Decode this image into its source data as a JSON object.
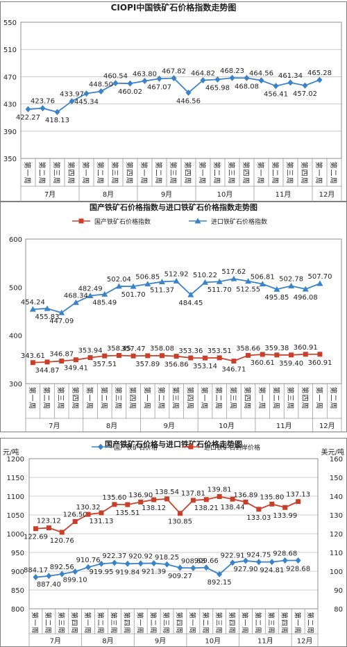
{
  "colors": {
    "blue": "#3b83c8",
    "red": "#c8402a",
    "grid": "#bfbfbf",
    "text": "#222222"
  },
  "chart_data": [
    {
      "type": "line",
      "title": "CIOPI中国铁矿石价格指数走势图",
      "ylim": [
        350,
        550
      ],
      "yticks": [
        350,
        390,
        430,
        470,
        510,
        550
      ],
      "week_labels": [
        "第一周",
        "第二周",
        "第三周",
        "第四周",
        "第一周",
        "第二周",
        "第三周",
        "第四周",
        "第一周",
        "第二周",
        "第三周",
        "第四周",
        "第一周",
        "第二周",
        "第三周",
        "第四周",
        "第一周",
        "第二周",
        "第三周",
        "第四周",
        "第一周",
        "第二周"
      ],
      "months": [
        {
          "label": "7月",
          "start": 0,
          "count": 4
        },
        {
          "label": "8月",
          "start": 4,
          "count": 4
        },
        {
          "label": "9月",
          "start": 8,
          "count": 4
        },
        {
          "label": "10月",
          "start": 12,
          "count": 4
        },
        {
          "label": "11月",
          "start": 16,
          "count": 4
        },
        {
          "label": "12月",
          "start": 20,
          "count": 2
        }
      ],
      "grid": true,
      "series": [
        {
          "values": [
            422.27,
            423.76,
            418.13,
            433.97,
            445.34,
            448.5,
            460.54,
            460.02,
            463.8,
            467.07,
            467.82,
            446.56,
            464.82,
            465.98,
            468.23,
            468.08,
            464.56,
            456.41,
            461.34,
            457.02,
            465.28
          ],
          "labels": [
            "422.27",
            "423.76",
            "418.13",
            "433.97",
            "445.34",
            "448.50",
            "460.54",
            "460.02",
            "463.80",
            "467.07",
            "467.82",
            "446.56",
            "464.82",
            "465.98",
            "468.23",
            "468.08",
            "464.56",
            "456.41",
            "461.34",
            "457.02",
            "465.28"
          ],
          "label_pos": [
            "below",
            "above",
            "below",
            "above",
            "below",
            "above",
            "above",
            "below",
            "above",
            "below",
            "above",
            "below",
            "above",
            "below",
            "above",
            "below",
            "above",
            "below",
            "above",
            "below",
            "above"
          ]
        }
      ]
    },
    {
      "type": "line",
      "title": "国产铁矿石价格指数与进口铁矿石价格指数走势图",
      "ylim": [
        300,
        600
      ],
      "yticks": [
        300,
        400,
        500,
        600
      ],
      "legend": "top",
      "week_labels": [
        "第一周",
        "第二周",
        "第三周",
        "第四周",
        "第一周",
        "第二周",
        "第三周",
        "第四周",
        "第一周",
        "第二周",
        "第三周",
        "第四周",
        "第一周",
        "第二周",
        "第三周",
        "第四周",
        "第一周",
        "第二周",
        "第三周",
        "第四周",
        "第一周",
        "第二周"
      ],
      "months": [
        {
          "label": "7月",
          "start": 0,
          "count": 4
        },
        {
          "label": "8月",
          "start": 4,
          "count": 4
        },
        {
          "label": "9月",
          "start": 8,
          "count": 4
        },
        {
          "label": "10月",
          "start": 12,
          "count": 4
        },
        {
          "label": "11月",
          "start": 16,
          "count": 4
        },
        {
          "label": "12月",
          "start": 20,
          "count": 2
        }
      ],
      "grid": false,
      "series": [
        {
          "name": "国产铁矿石价格指数",
          "color": "#c8402a",
          "marker": "square",
          "values": [
            343.61,
            344.87,
            346.87,
            349.41,
            353.94,
            357.51,
            358.45,
            357.47,
            357.89,
            358.08,
            356.86,
            353.36,
            353.14,
            353.51,
            346.71,
            358.66,
            360.61,
            359.38,
            359.4,
            360.91,
            360.91
          ],
          "labels": [
            "343.61",
            "344.87",
            "346.87",
            "349.41",
            "353.94",
            "357.51",
            "358.45",
            "357.47",
            "357.89",
            "358.08",
            "356.86",
            "353.36",
            "353.14",
            "353.51",
            "346.71",
            "358.66",
            "360.61",
            "359.38",
            "359.40",
            "360.91",
            "360.91"
          ],
          "label_pos": [
            "above",
            "below",
            "above",
            "below",
            "above",
            "below",
            "above",
            "above",
            "below",
            "above",
            "below",
            "above",
            "below",
            "above",
            "below",
            "above",
            "below",
            "above",
            "below",
            "above",
            "below"
          ]
        },
        {
          "name": "进口铁矿石价格指数",
          "color": "#3b83c8",
          "marker": "triangle",
          "values": [
            454.24,
            455.83,
            447.09,
            468.34,
            482.49,
            485.49,
            502.04,
            501.7,
            506.85,
            511.37,
            512.92,
            484.45,
            510.22,
            511.7,
            517.62,
            512.55,
            506.81,
            495.85,
            502.78,
            496.08,
            507.7
          ],
          "labels": [
            "454.24",
            "455.83",
            "447.09",
            "468.34",
            "482.49",
            "485.49",
            "502.04",
            "501.70",
            "506.85",
            "511.37",
            "512.92",
            "484.45",
            "510.22",
            "511.70",
            "517.62",
            "512.55",
            "506.81",
            "495.85",
            "502.78",
            "496.08",
            "507.70"
          ],
          "label_pos": [
            "above",
            "below",
            "below",
            "above",
            "above",
            "below",
            "above",
            "below",
            "above",
            "below",
            "above",
            "below",
            "above",
            "below",
            "above",
            "below",
            "above",
            "below",
            "above",
            "below",
            "above"
          ]
        }
      ]
    },
    {
      "type": "line",
      "title": "国产铁矿石价格与进口铁矿石价格走势图",
      "ylabel": "元/吨",
      "y2label": "美元/吨",
      "ylim": [
        800,
        1200
      ],
      "yticks": [
        800,
        850,
        900,
        950,
        1000,
        1050,
        1100,
        1150,
        1200
      ],
      "y2lim": [
        80,
        160
      ],
      "y2ticks": [
        80,
        90,
        100,
        110,
        120,
        130,
        140,
        150,
        160
      ],
      "legend": "top",
      "week_labels": [
        "第一周",
        "第二周",
        "第三周",
        "第四周",
        "第一周",
        "第二周",
        "第三周",
        "第四周",
        "第一周",
        "第二周",
        "第三周",
        "第四周",
        "第一周",
        "第二周",
        "第三周",
        "第四周",
        "第一周",
        "第二周",
        "第三周",
        "第四周",
        "第一周",
        "第二周"
      ],
      "months": [
        {
          "label": "7月",
          "start": 0,
          "count": 4
        },
        {
          "label": "8月",
          "start": 4,
          "count": 4
        },
        {
          "label": "9月",
          "start": 8,
          "count": 4
        },
        {
          "label": "10月",
          "start": 12,
          "count": 4
        },
        {
          "label": "11月",
          "start": 16,
          "count": 4
        },
        {
          "label": "12月",
          "start": 20,
          "count": 2
        }
      ],
      "grid": true,
      "series": [
        {
          "name": "国产铁矿石价格",
          "color": "#3b83c8",
          "marker": "diamond",
          "axis": "left",
          "values": [
            884.17,
            887.4,
            892.56,
            899.1,
            910.76,
            919.95,
            922.37,
            919.84,
            920.92,
            921.39,
            918.25,
            909.27,
            908.68,
            909.66,
            892.15,
            922.91,
            927.9,
            924.75,
            924.81,
            928.68,
            928.68
          ],
          "labels": [
            "884.17",
            "887.40",
            "892.56",
            "899.10",
            "910.76",
            "919.95",
            "922.37",
            "919.84",
            "920.92",
            "921.39",
            "918.25",
            "909.27",
            "908.68",
            "909.66",
            "892.15",
            "922.91",
            "927.90",
            "924.75",
            "924.81",
            "928.68",
            "928.68"
          ],
          "label_pos": [
            "above",
            "below",
            "above",
            "below",
            "above",
            "below",
            "above",
            "below",
            "above",
            "below",
            "above",
            "below",
            "above",
            "above",
            "below",
            "above",
            "below",
            "above",
            "below",
            "above",
            "below"
          ]
        },
        {
          "name": "进口铁矿石到岸价格",
          "color": "#c8402a",
          "marker": "square",
          "axis": "right",
          "values": [
            122.69,
            123.12,
            120.76,
            126.5,
            130.32,
            131.13,
            135.6,
            135.51,
            136.9,
            138.12,
            138.54,
            130.85,
            137.81,
            138.21,
            139.81,
            138.44,
            136.89,
            133.03,
            135.8,
            133.99,
            137.13
          ],
          "labels": [
            "122.69",
            "123.12",
            "120.76",
            "126.50",
            "130.32",
            "131.13",
            "135.60",
            "135.51",
            "136.90",
            "138.12",
            "138.54",
            "130.85",
            "137.81",
            "138.21",
            "139.81",
            "138.44",
            "136.89",
            "133.03",
            "135.80",
            "133.99",
            "137.13"
          ],
          "label_pos": [
            "below",
            "above",
            "below",
            "above",
            "above",
            "below",
            "above",
            "below",
            "above",
            "below",
            "above",
            "below",
            "above",
            "below",
            "above",
            "below",
            "above",
            "below",
            "above",
            "below",
            "above"
          ]
        }
      ]
    }
  ]
}
